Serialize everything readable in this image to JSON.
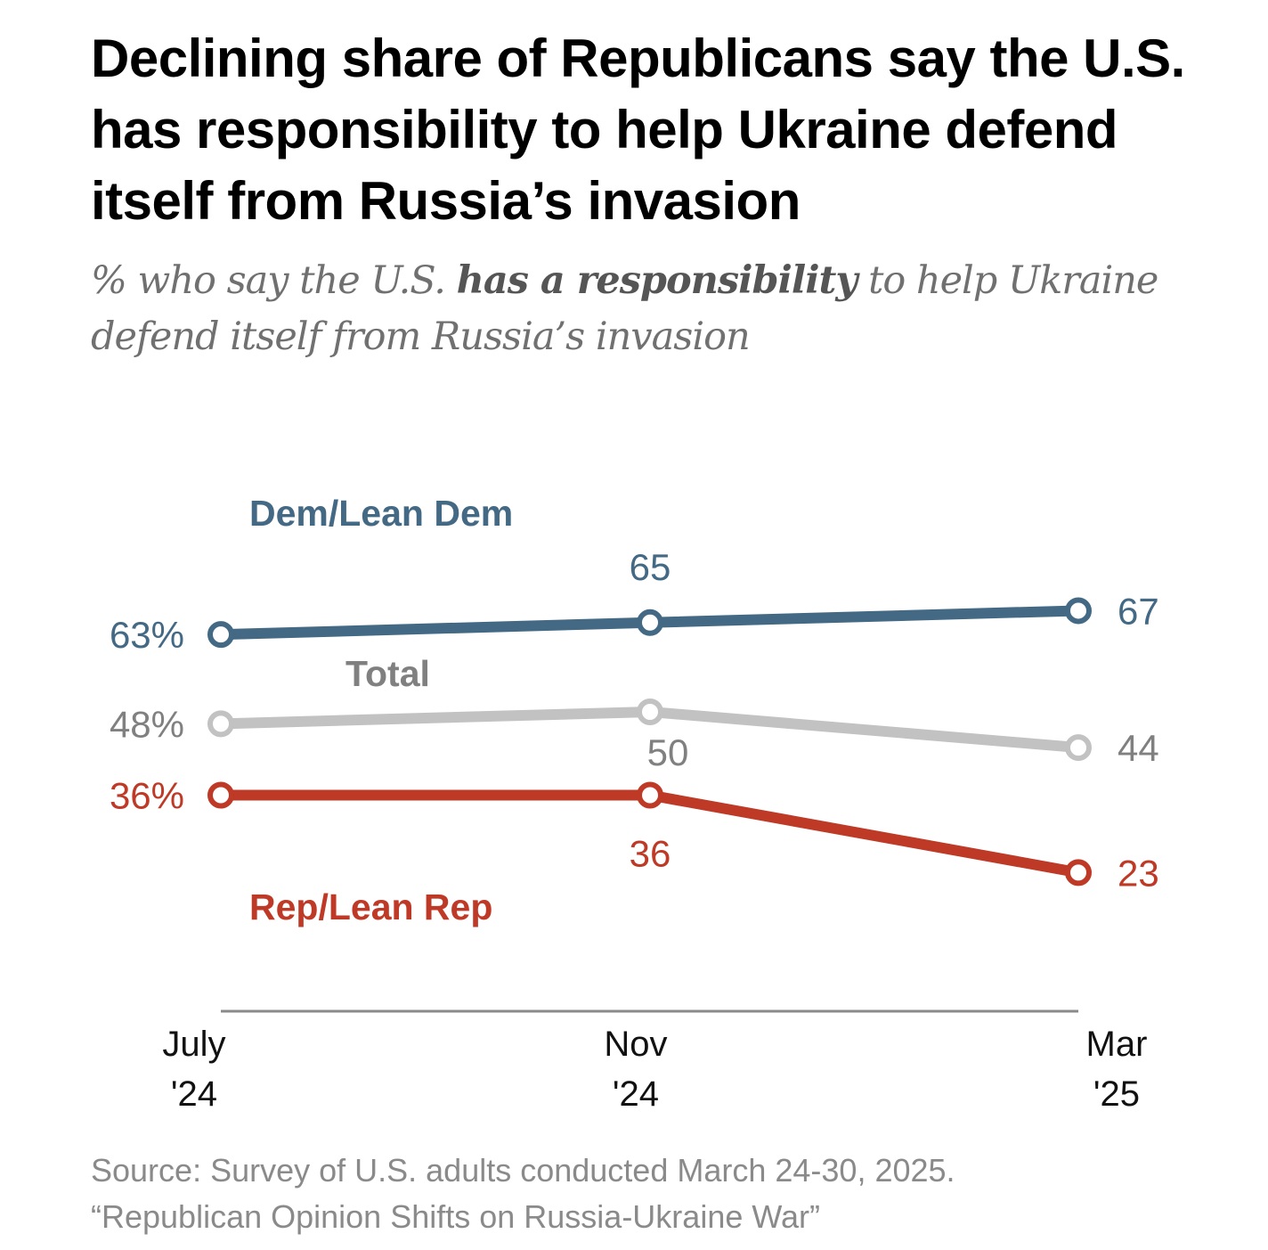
{
  "title": "Declining share of Republicans say the U.S. has responsibility to help Ukraine defend itself from Russia’s invasion",
  "subtitle": {
    "pre": "% who say the U.S. ",
    "bold": "has a responsibility",
    "post": " to help Ukraine defend itself from Russia’s invasion"
  },
  "source": {
    "line1": "Source: Survey of U.S. adults conducted March 24-30, 2025.",
    "line2": "“Republican Opinion Shifts on Russia-Ukraine War”"
  },
  "chart_data": {
    "type": "line",
    "categories": [
      [
        "July",
        "'24"
      ],
      [
        "Nov",
        "'24"
      ],
      [
        "Mar",
        "'25"
      ]
    ],
    "ylim": [
      0,
      100
    ],
    "grid": false,
    "series": [
      {
        "name": "Dem/Lean Dem",
        "values": [
          63,
          65,
          67
        ],
        "labels": [
          "63%",
          "65",
          "67"
        ],
        "color": "#436984"
      },
      {
        "name": "Total",
        "values": [
          48,
          50,
          44
        ],
        "labels": [
          "48%",
          "50",
          "44"
        ],
        "color": "#c2c2c2",
        "label_color": "#808080"
      },
      {
        "name": "Rep/Lean Rep",
        "values": [
          36,
          36,
          23
        ],
        "labels": [
          "36%",
          "36",
          "23"
        ],
        "color": "#bf3927"
      }
    ]
  }
}
